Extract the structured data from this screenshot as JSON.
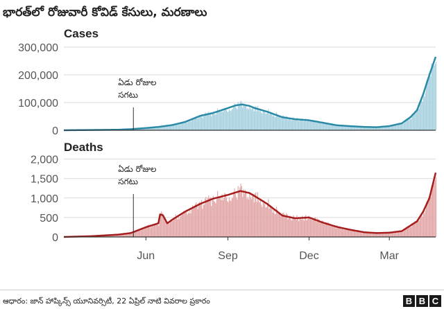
{
  "header": {
    "title": "భారత్‌లో రోజువారీ కోవిడ్ కేసులు, మరణాలు"
  },
  "footer": {
    "source": "ఆధారం: జాన్ హాప్కిన్స్ యూనివర్సిటీ, 22 ఏప్రిల్ నాటి వివరాల ప్రకారం",
    "brand_letters": [
      "B",
      "B",
      "C"
    ]
  },
  "colors": {
    "cases_line": "#2a8aa6",
    "cases_bar": "#a9d2e0",
    "deaths_line": "#a51d1d",
    "deaths_bar": "#e3a8a8",
    "axis": "#333333",
    "grid": "#d9d9d9"
  },
  "chart_data": [
    {
      "type": "bar",
      "title": "Cases",
      "overlay": "line",
      "ylim": [
        0,
        320000
      ],
      "yticks": [
        0,
        100000,
        200000,
        300000
      ],
      "ytick_labels": [
        "0",
        "100,000",
        "200,000",
        "300,000"
      ],
      "xticks": [
        "2020-06-01",
        "2020-09-01",
        "2020-12-01",
        "2021-03-01"
      ],
      "xtick_labels": [
        "Jun",
        "Sep",
        "Dec",
        "Mar"
      ],
      "xlim": [
        "2020-03-01",
        "2021-04-22"
      ],
      "annotation": {
        "lines": [
          "ఏడు రోజుల",
          "సగటు"
        ],
        "date": "2020-05-18"
      },
      "series": [
        {
          "name": "Seven-day average",
          "dates": [
            "2020-03-01",
            "2020-04-01",
            "2020-05-01",
            "2020-05-15",
            "2020-06-01",
            "2020-06-15",
            "2020-07-01",
            "2020-07-15",
            "2020-08-01",
            "2020-08-15",
            "2020-09-01",
            "2020-09-10",
            "2020-09-17",
            "2020-09-25",
            "2020-10-01",
            "2020-10-15",
            "2020-11-01",
            "2020-11-15",
            "2020-12-01",
            "2020-12-15",
            "2021-01-01",
            "2021-01-15",
            "2021-02-01",
            "2021-02-15",
            "2021-03-01",
            "2021-03-15",
            "2021-03-25",
            "2021-04-01",
            "2021-04-08",
            "2021-04-15",
            "2021-04-22"
          ],
          "values": [
            0,
            1000,
            2000,
            4000,
            8000,
            12000,
            19000,
            30000,
            52000,
            62000,
            80000,
            90000,
            93000,
            88000,
            80000,
            67000,
            47000,
            40000,
            36000,
            28000,
            18000,
            15000,
            12000,
            11000,
            15000,
            25000,
            48000,
            72000,
            130000,
            200000,
            265000
          ]
        }
      ]
    },
    {
      "type": "bar",
      "title": "Deaths",
      "overlay": "line",
      "ylim": [
        0,
        2100
      ],
      "yticks": [
        0,
        500,
        1000,
        1500,
        2000
      ],
      "ytick_labels": [
        "0",
        "500",
        "1,000",
        "1,500",
        "2,000"
      ],
      "xticks": [
        "2020-06-01",
        "2020-09-01",
        "2020-12-01",
        "2021-03-01"
      ],
      "xtick_labels": [
        "Jun",
        "Sep",
        "Dec",
        "Mar"
      ],
      "xlim": [
        "2020-03-01",
        "2021-04-22"
      ],
      "annotation": {
        "lines": [
          "ఏడు రోజుల",
          "సగటు"
        ],
        "date": "2020-05-18"
      },
      "series": [
        {
          "name": "Seven-day average",
          "dates": [
            "2020-03-01",
            "2020-04-01",
            "2020-05-01",
            "2020-05-15",
            "2020-06-01",
            "2020-06-15",
            "2020-06-17",
            "2020-06-20",
            "2020-06-25",
            "2020-07-01",
            "2020-07-15",
            "2020-08-01",
            "2020-08-15",
            "2020-09-01",
            "2020-09-15",
            "2020-09-25",
            "2020-10-01",
            "2020-10-15",
            "2020-11-01",
            "2020-11-15",
            "2020-12-01",
            "2020-12-15",
            "2021-01-01",
            "2021-01-15",
            "2021-02-01",
            "2021-02-15",
            "2021-03-01",
            "2021-03-15",
            "2021-04-01",
            "2021-04-08",
            "2021-04-15",
            "2021-04-22"
          ],
          "values": [
            0,
            20,
            60,
            100,
            250,
            350,
            580,
            560,
            350,
            450,
            650,
            850,
            980,
            1080,
            1180,
            1130,
            1050,
            850,
            550,
            480,
            500,
            380,
            260,
            190,
            120,
            100,
            110,
            150,
            400,
            650,
            1000,
            1650
          ]
        }
      ]
    }
  ]
}
